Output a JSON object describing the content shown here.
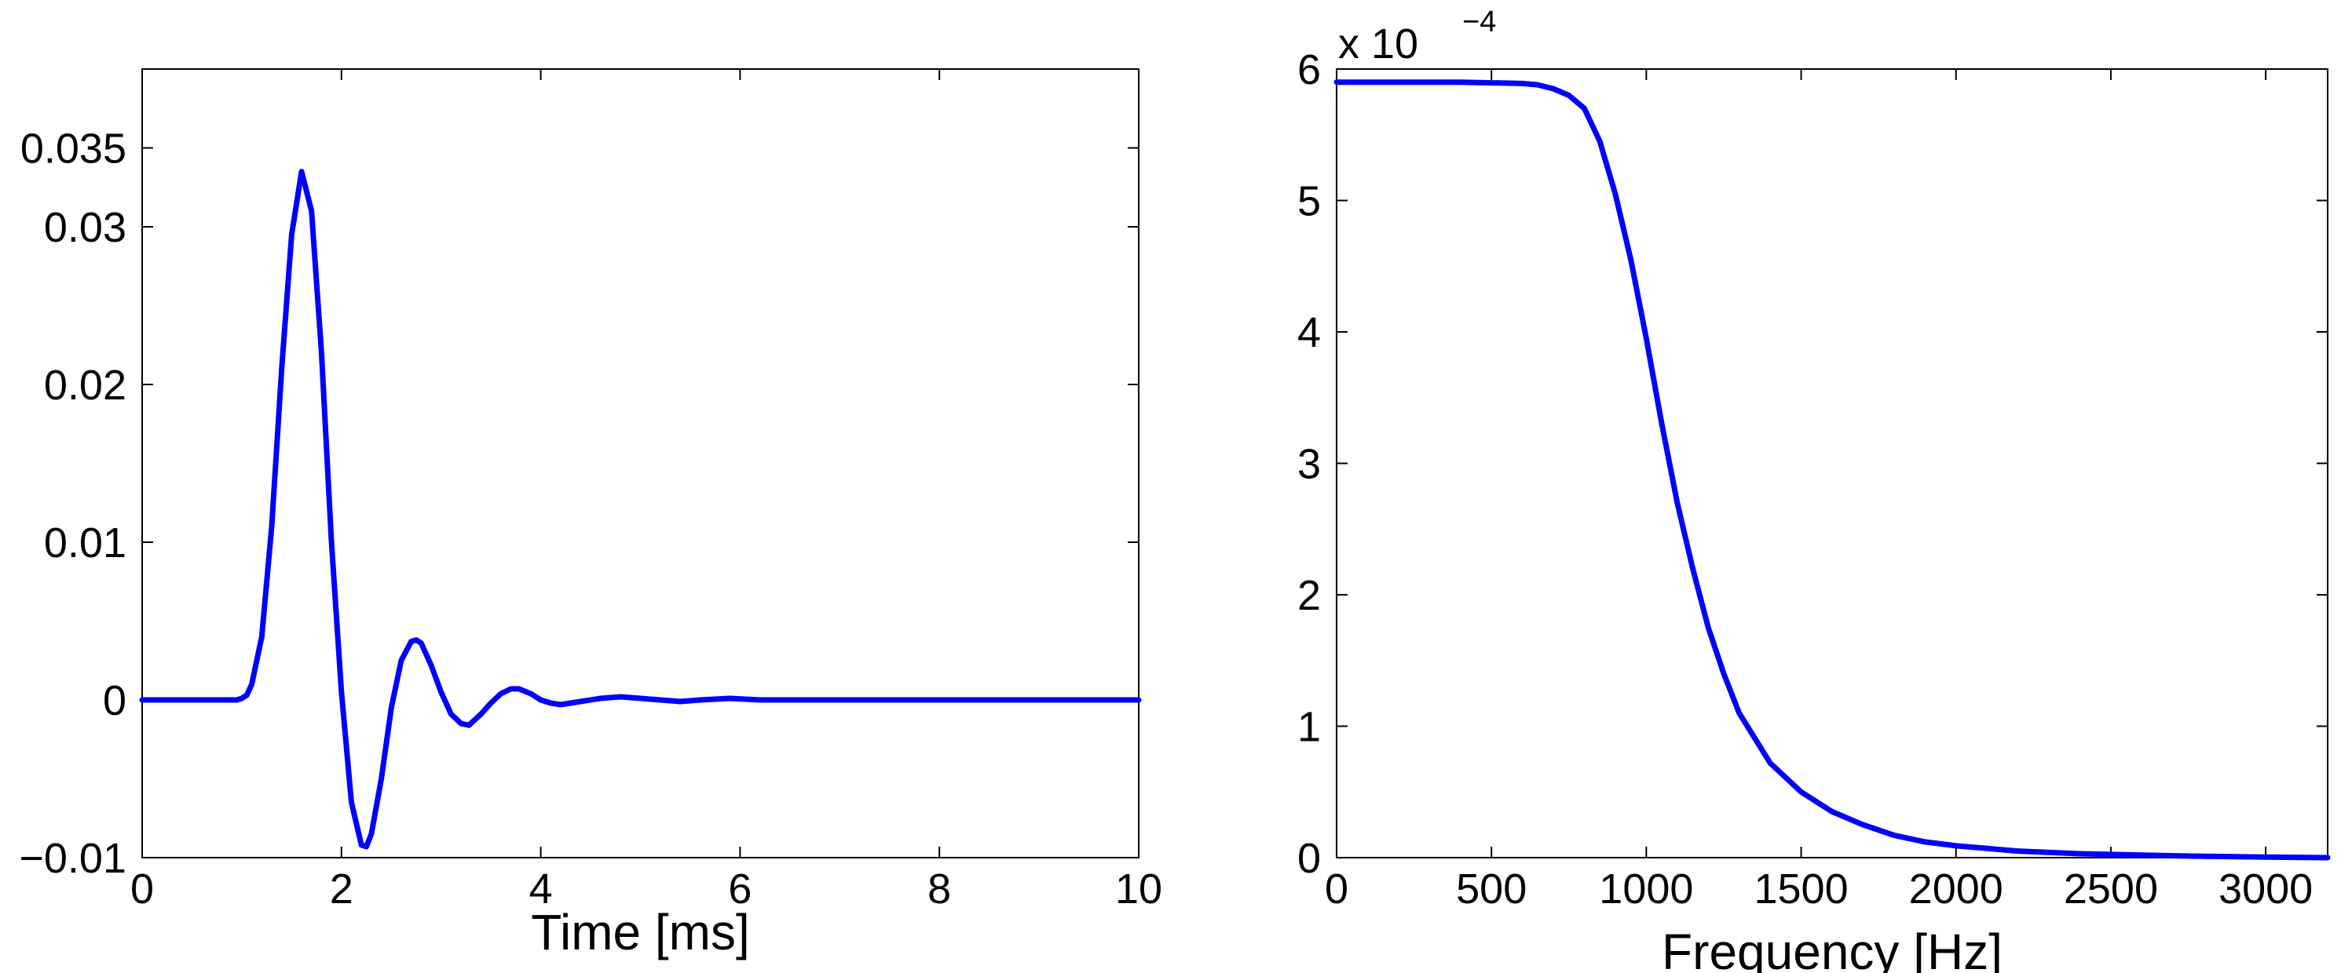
{
  "chart_data": [
    {
      "type": "line",
      "title": "",
      "xlabel": "Time [ms]",
      "ylabel": "",
      "xlim": [
        0,
        10
      ],
      "ylim": [
        -0.01,
        0.04
      ],
      "grid": false,
      "color": "#0000ff",
      "x_ticks": [
        0,
        2,
        4,
        6,
        8,
        10
      ],
      "x_tick_labels": [
        "0",
        "2",
        "4",
        "6",
        "8",
        "10"
      ],
      "y_ticks": [
        -0.01,
        0,
        0.01,
        0.02,
        0.03,
        0.035
      ],
      "y_tick_labels": [
        "−0.01",
        "0",
        "0.01",
        "0.02",
        "0.03",
        "0.035"
      ],
      "series": [
        {
          "x": [
            0,
            0.5,
            0.95,
            1.0,
            1.05,
            1.1,
            1.2,
            1.3,
            1.4,
            1.5,
            1.6,
            1.7,
            1.8,
            1.9,
            2.0,
            2.1,
            2.2,
            2.25,
            2.3,
            2.4,
            2.5,
            2.6,
            2.7,
            2.75,
            2.8,
            2.9,
            3.0,
            3.1,
            3.2,
            3.28,
            3.4,
            3.5,
            3.6,
            3.7,
            3.78,
            3.9,
            4.0,
            4.1,
            4.2,
            4.3,
            4.4,
            4.6,
            4.8,
            5.0,
            5.2,
            5.4,
            5.6,
            5.9,
            6.2,
            7.0,
            8.0,
            9.0,
            10.0
          ],
          "y": [
            0,
            0,
            0,
            0.0001,
            0.0003,
            0.001,
            0.004,
            0.011,
            0.021,
            0.0295,
            0.0335,
            0.031,
            0.022,
            0.01,
            0.0005,
            -0.0065,
            -0.0092,
            -0.0093,
            -0.0085,
            -0.005,
            -0.0005,
            0.0025,
            0.0037,
            0.0038,
            0.0036,
            0.0022,
            0.0005,
            -0.0009,
            -0.0015,
            -0.0016,
            -0.0009,
            -0.0002,
            0.0004,
            0.0007,
            0.0007,
            0.0004,
            0.0,
            -0.0002,
            -0.0003,
            -0.0002,
            -0.0001,
            0.0001,
            0.0002,
            0.0001,
            0.0,
            -0.0001,
            0.0,
            0.0001,
            0.0,
            0,
            0,
            0,
            0
          ]
        }
      ]
    },
    {
      "type": "line",
      "title": "",
      "xlabel": "Frequency [Hz]",
      "ylabel": "",
      "xlim": [
        0,
        3200
      ],
      "ylim": [
        0,
        6
      ],
      "y_scale_label": "x 10",
      "y_scale_exponent": "−4",
      "grid": false,
      "color": "#0000ff",
      "x_ticks": [
        0,
        500,
        1000,
        1500,
        2000,
        2500,
        3000
      ],
      "x_tick_labels": [
        "0",
        "500",
        "1000",
        "1500",
        "2000",
        "2500",
        "3000"
      ],
      "y_ticks": [
        0,
        1,
        2,
        3,
        4,
        5,
        6
      ],
      "y_tick_labels": [
        "0",
        "1",
        "2",
        "3",
        "4",
        "5",
        "6"
      ],
      "series": [
        {
          "x": [
            0,
            200,
            400,
            600,
            650,
            700,
            750,
            800,
            850,
            900,
            950,
            1000,
            1050,
            1100,
            1150,
            1200,
            1250,
            1300,
            1400,
            1500,
            1600,
            1700,
            1800,
            1900,
            2000,
            2200,
            2400,
            2600,
            2800,
            3000,
            3200
          ],
          "y": [
            5.9,
            5.9,
            5.9,
            5.89,
            5.88,
            5.85,
            5.8,
            5.7,
            5.45,
            5.05,
            4.55,
            3.95,
            3.3,
            2.7,
            2.2,
            1.75,
            1.4,
            1.1,
            0.72,
            0.5,
            0.35,
            0.25,
            0.17,
            0.12,
            0.09,
            0.05,
            0.03,
            0.02,
            0.01,
            0.005,
            0.0
          ]
        }
      ]
    }
  ]
}
